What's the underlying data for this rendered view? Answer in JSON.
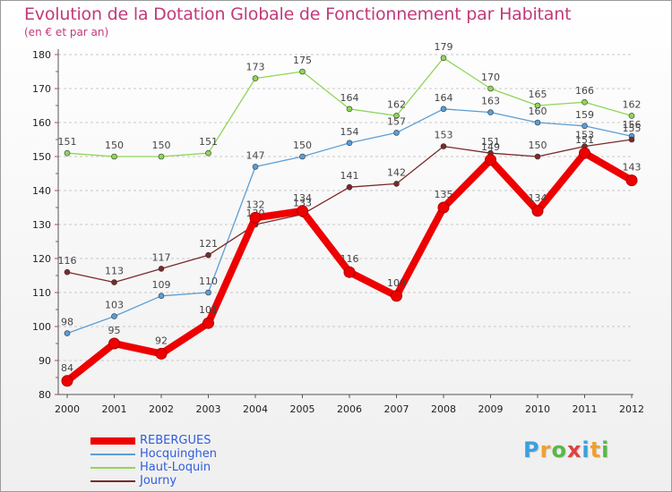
{
  "chart_data": {
    "type": "line",
    "title": "Evolution de la Dotation Globale de Fonctionnement par Habitant",
    "subtitle": "(en € et par an)",
    "xlabel": "",
    "ylabel": "",
    "categories": [
      "2000",
      "2001",
      "2002",
      "2003",
      "2004",
      "2005",
      "2006",
      "2007",
      "2008",
      "2009",
      "2010",
      "2011",
      "2012"
    ],
    "ylim": [
      80,
      180
    ],
    "yticks": [
      "80",
      "90",
      "100",
      "110",
      "120",
      "130",
      "140",
      "150",
      "160",
      "170",
      "180"
    ],
    "grid": "horizontal dashed",
    "legend_position": "bottom-left",
    "series": [
      {
        "name": "Haut-Loquin",
        "color": "#8fd657",
        "width": "thin",
        "values": [
          151,
          150,
          150,
          151,
          173,
          175,
          164,
          162,
          179,
          170,
          165,
          166,
          162
        ]
      },
      {
        "name": "Hocquinghen",
        "color": "#5b9ed6",
        "width": "thin",
        "values": [
          98,
          103,
          109,
          110,
          147,
          150,
          154,
          157,
          164,
          163,
          160,
          159,
          156
        ]
      },
      {
        "name": "Journy",
        "color": "#7a2a2a",
        "width": "thin",
        "values": [
          116,
          113,
          117,
          121,
          130,
          133,
          141,
          142,
          153,
          151,
          150,
          153,
          155
        ]
      },
      {
        "name": "REBERGUES",
        "color": "#ee0000",
        "width": "thick",
        "values": [
          84,
          95,
          92,
          101,
          132,
          134,
          116,
          109,
          135,
          149,
          134,
          151,
          143
        ]
      }
    ],
    "legend_order": [
      "REBERGUES",
      "Hocquinghen",
      "Haut-Loquin",
      "Journy"
    ]
  },
  "brand": {
    "letters": [
      "P",
      "r",
      "o",
      "x",
      "i",
      "t",
      "i"
    ],
    "colors": [
      "#3aa0e0",
      "#f0a030",
      "#58b848",
      "#e04040",
      "#3aa0e0",
      "#f0a030",
      "#58b848"
    ]
  }
}
